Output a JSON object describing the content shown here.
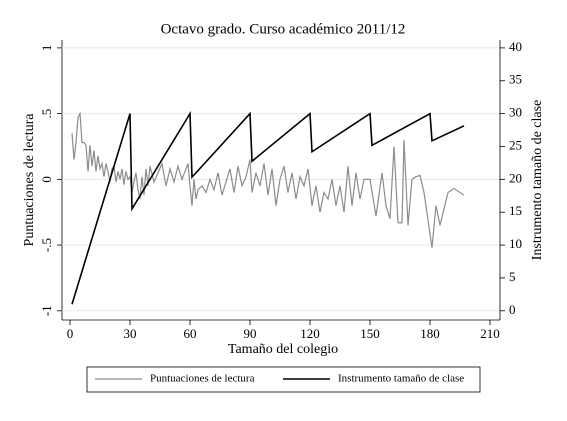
{
  "chart_data": {
    "type": "line",
    "title": "Octavo grado. Curso académico 2011/12",
    "xlabel": "Tamaño del colegio",
    "ylabel": "Puntuaciones de lectura",
    "y2label": "Instrumento tamaño de clase",
    "xlim": [
      -4,
      215
    ],
    "xticks": [
      0,
      30,
      60,
      90,
      120,
      150,
      180,
      210
    ],
    "ylim": [
      -1.07,
      1.06
    ],
    "yticks": [
      {
        "value": -1,
        "label": "-1"
      },
      {
        "value": -0.5,
        "label": "-.5"
      },
      0,
      {
        "value": 0.5,
        "label": ".5"
      },
      1
    ],
    "y2lim": [
      -1.4,
      41.2
    ],
    "y2ticks": [
      0,
      5,
      10,
      15,
      20,
      25,
      30,
      35,
      40
    ],
    "grid": true,
    "legend": "bottom",
    "series": [
      {
        "name": "Puntuaciones de lectura",
        "color": "#8c8c8c",
        "x": [
          1,
          2,
          3,
          4,
          5,
          6,
          7,
          8,
          9,
          10,
          11,
          12,
          13,
          14,
          15,
          16,
          17,
          18,
          19,
          20,
          21,
          22,
          23,
          24,
          25,
          26,
          27,
          28,
          29,
          30,
          31,
          32,
          33,
          34,
          35,
          36,
          37,
          38,
          39,
          40,
          42,
          44,
          46,
          48,
          50,
          52,
          54,
          56,
          58,
          59,
          60,
          61,
          62,
          63,
          64,
          66,
          68,
          70,
          72,
          74,
          76,
          78,
          80,
          82,
          84,
          86,
          88,
          90,
          91,
          93,
          95,
          97,
          99,
          101,
          103,
          105,
          107,
          109,
          111,
          113,
          115,
          117,
          119,
          121,
          123,
          125,
          127,
          129,
          131,
          133,
          135,
          137,
          139,
          141,
          143,
          145,
          147,
          150,
          153,
          156,
          158,
          160,
          162,
          164,
          166,
          167,
          169,
          171,
          173,
          175,
          177,
          181,
          183,
          185,
          189,
          192,
          197
        ],
        "values": [
          0.35,
          0.15,
          0.28,
          0.47,
          0.5,
          0.28,
          0.28,
          0.26,
          0.06,
          0.26,
          0.1,
          0.22,
          0.06,
          0.18,
          0.08,
          0.12,
          0.02,
          0.12,
          0.06,
          -0.02,
          0.08,
          0.1,
          -0.02,
          0.06,
          0.0,
          0.08,
          -0.04,
          0.06,
          0.0,
          0.02,
          -0.1,
          -0.02,
          0.05,
          -0.08,
          -0.15,
          0.02,
          -0.12,
          0.08,
          -0.05,
          0.1,
          -0.02,
          0.05,
          0.12,
          -0.05,
          0.08,
          -0.02,
          0.1,
          0.0,
          0.08,
          0.12,
          -0.05,
          -0.2,
          0.0,
          -0.15,
          -0.08,
          -0.05,
          -0.1,
          0.0,
          -0.08,
          0.05,
          -0.12,
          -0.02,
          0.08,
          -0.1,
          0.1,
          -0.05,
          0.02,
          0.15,
          -0.1,
          0.05,
          -0.05,
          0.12,
          -0.12,
          0.08,
          -0.2,
          0.0,
          0.1,
          -0.1,
          0.05,
          -0.15,
          0.02,
          -0.05,
          0.08,
          -0.2,
          -0.05,
          -0.25,
          -0.1,
          -0.15,
          0.0,
          -0.2,
          -0.05,
          -0.25,
          0.1,
          -0.2,
          0.05,
          -0.15,
          0.0,
          0.0,
          -0.28,
          0.05,
          -0.2,
          -0.3,
          0.25,
          -0.33,
          -0.33,
          0.3,
          -0.35,
          0.0,
          0.02,
          0.03,
          -0.1,
          -0.52,
          -0.2,
          -0.35,
          -0.1,
          -0.07,
          -0.12
        ]
      },
      {
        "name": "Instrumento tamaño de clase",
        "color": "#000000",
        "axis": "y2",
        "x": [
          1,
          30,
          31,
          60,
          61,
          90,
          91,
          120,
          121,
          150,
          151,
          180,
          181,
          197
        ],
        "values": [
          1,
          30,
          15.5,
          30,
          20.33,
          30,
          22.75,
          30,
          24.2,
          30,
          25.17,
          30,
          25.86,
          28.14
        ]
      }
    ]
  }
}
